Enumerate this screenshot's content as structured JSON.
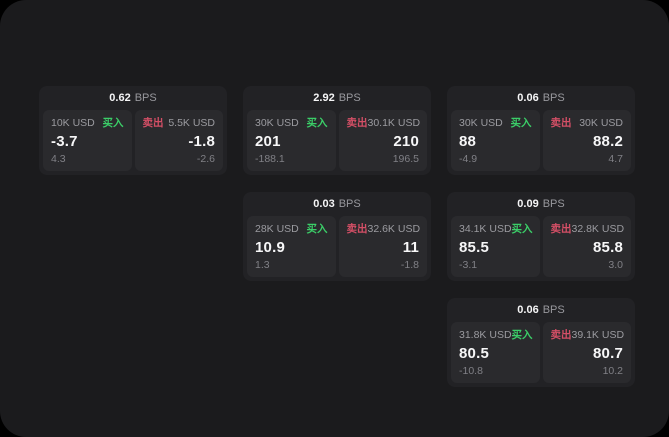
{
  "theme": {
    "page_bg": "#000000",
    "container_bg": "#1b1b1d",
    "card_bg": "#222225",
    "panel_bg": "#2a2a2d",
    "text_primary": "#f5f5f6",
    "text_secondary": "#9b9ba0",
    "text_tertiary": "#808086",
    "buy_color": "#3bce68",
    "sell_color": "#d44f66"
  },
  "labels": {
    "bps": "BPS",
    "buy": "买入",
    "sell": "卖出"
  },
  "cards": [
    {
      "bps": "0.62",
      "buy": {
        "size": "10K USD",
        "value": "-3.7",
        "sub": "4.3"
      },
      "sell": {
        "size": "5.5K USD",
        "value": "-1.8",
        "sub": "-2.6"
      }
    },
    {
      "bps": "2.92",
      "buy": {
        "size": "30K USD",
        "value": "201",
        "sub": "-188.1"
      },
      "sell": {
        "size": "30.1K USD",
        "value": "210",
        "sub": "196.5"
      }
    },
    {
      "bps": "0.06",
      "buy": {
        "size": "30K USD",
        "value": "88",
        "sub": "-4.9"
      },
      "sell": {
        "size": "30K USD",
        "value": "88.2",
        "sub": "4.7"
      }
    },
    {
      "bps": "0.03",
      "buy": {
        "size": "28K USD",
        "value": "10.9",
        "sub": "1.3"
      },
      "sell": {
        "size": "32.6K USD",
        "value": "11",
        "sub": "-1.8"
      }
    },
    {
      "bps": "0.09",
      "buy": {
        "size": "34.1K USD",
        "value": "85.5",
        "sub": "-3.1"
      },
      "sell": {
        "size": "32.8K USD",
        "value": "85.8",
        "sub": "3.0"
      }
    },
    {
      "bps": "0.06",
      "buy": {
        "size": "31.8K USD",
        "value": "80.5",
        "sub": "-10.8"
      },
      "sell": {
        "size": "39.1K USD",
        "value": "80.7",
        "sub": "10.2"
      }
    }
  ]
}
